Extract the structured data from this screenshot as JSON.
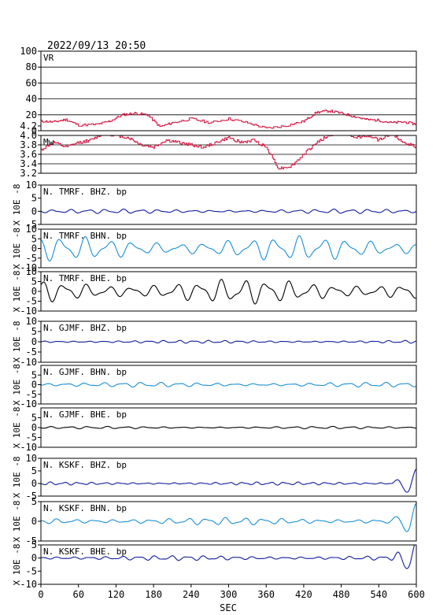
{
  "header": {
    "datetime": "2022/09/13 20:50"
  },
  "colors": {
    "red": "#d0103c",
    "navy": "#101c9c",
    "cyan": "#1a8fd4",
    "black": "#000000"
  },
  "chart_data": {
    "type": "line",
    "xlabel": "SEC",
    "xlim": [
      0,
      600
    ],
    "xticks": [
      "0",
      "60",
      "120",
      "180",
      "240",
      "300",
      "360",
      "420",
      "480",
      "540",
      "600"
    ],
    "panels": [
      {
        "label": "VR",
        "ylabel": "",
        "ylim": [
          0,
          100
        ],
        "yticks": [
          "0",
          "20",
          "40",
          "60",
          "80",
          "100"
        ],
        "ytick_values": [
          0,
          20,
          40,
          60,
          80,
          100
        ],
        "grid": true,
        "kind": "step",
        "color": "#d0103c",
        "x": [
          0,
          20,
          40,
          60,
          90,
          110,
          130,
          150,
          170,
          190,
          210,
          240,
          270,
          300,
          330,
          360,
          390,
          420,
          440,
          460,
          480,
          500,
          520,
          540,
          560,
          580,
          600
        ],
        "y": [
          12,
          11,
          14,
          7,
          8,
          12,
          20,
          22,
          20,
          5,
          10,
          15,
          10,
          15,
          10,
          3,
          6,
          12,
          23,
          25,
          22,
          18,
          14,
          13,
          10,
          11,
          8
        ]
      },
      {
        "label": "Mw",
        "ylabel": "",
        "ylim": [
          3.2,
          4.0
        ],
        "yticks": [
          "3.2",
          "3.4",
          "3.6",
          "3.8",
          "4.0",
          "4.2"
        ],
        "ytick_values": [
          3.2,
          3.4,
          3.6,
          3.8,
          4.0,
          4.2
        ],
        "grid": true,
        "kind": "step",
        "color": "#d0103c",
        "x": [
          0,
          20,
          40,
          60,
          80,
          100,
          120,
          140,
          160,
          180,
          200,
          220,
          240,
          260,
          280,
          300,
          320,
          340,
          360,
          380,
          400,
          420,
          440,
          460,
          480,
          500,
          520,
          540,
          560,
          580,
          600
        ],
        "y": [
          3.7,
          3.85,
          3.75,
          3.85,
          3.9,
          4.05,
          4.0,
          3.95,
          3.8,
          3.75,
          3.9,
          3.85,
          3.8,
          3.75,
          3.85,
          3.95,
          3.85,
          3.9,
          3.75,
          3.3,
          3.35,
          3.6,
          3.85,
          4.0,
          4.05,
          3.95,
          4.0,
          3.9,
          4.05,
          3.85,
          3.75
        ]
      },
      {
        "label": "N. TMRF. BHZ. bp",
        "ylabel": "X 10E -8",
        "ylim": [
          -5,
          10
        ],
        "yticks": [
          "-5",
          "0",
          "5",
          "10"
        ],
        "ytick_values": [
          -5,
          0,
          5,
          10
        ],
        "grid": false,
        "kind": "wave",
        "color": "#101c9c",
        "amp": 0.8,
        "seed": 1,
        "period": 28,
        "end_spike": 0
      },
      {
        "label": "N. TMRF. BHN. bp",
        "ylabel": "X 10E -8",
        "ylim": [
          -10,
          10
        ],
        "yticks": [
          "-10",
          "-5",
          "0",
          "5",
          "10"
        ],
        "ytick_values": [
          -10,
          -5,
          0,
          5,
          10
        ],
        "grid": false,
        "kind": "wave",
        "color": "#1a8fd4",
        "amp": 6.0,
        "seed": 2,
        "period": 38,
        "end_spike": 0
      },
      {
        "label": "N. TMRF. BHE. bp",
        "ylabel": "X 10E -8",
        "ylim": [
          -10,
          10
        ],
        "yticks": [
          "-10",
          "-5",
          "0",
          "5",
          "10"
        ],
        "ytick_values": [
          -10,
          -5,
          0,
          5,
          10
        ],
        "grid": false,
        "kind": "wave",
        "color": "#000000",
        "amp": 6.0,
        "seed": 3,
        "period": 36,
        "end_spike": 0
      },
      {
        "label": "N. GJMF. BHZ. bp",
        "ylabel": "X 10E -8",
        "ylim": [
          -10,
          10
        ],
        "yticks": [
          "-10",
          "-5",
          "0",
          "5",
          "10"
        ],
        "ytick_values": [
          -10,
          -5,
          0,
          5,
          10
        ],
        "grid": false,
        "kind": "wave",
        "color": "#101c9c",
        "amp": 0.7,
        "seed": 4,
        "period": 24,
        "end_spike": 0
      },
      {
        "label": "N. GJMF. BHN. bp",
        "ylabel": "X 10E -8",
        "ylim": [
          -10,
          10
        ],
        "yticks": [
          "-10",
          "-5",
          "0",
          "5"
        ],
        "ytick_values": [
          -10,
          -5,
          0,
          5
        ],
        "grid": false,
        "kind": "wave",
        "color": "#1a8fd4",
        "amp": 1.2,
        "seed": 5,
        "period": 30,
        "end_spike": 0
      },
      {
        "label": "N. GJMF. BHE. bp",
        "ylabel": "X 10E -8",
        "ylim": [
          -10,
          10
        ],
        "yticks": [
          "-10",
          "-5",
          "0",
          "5"
        ],
        "ytick_values": [
          -10,
          -5,
          0,
          5
        ],
        "grid": false,
        "kind": "wave",
        "color": "#000000",
        "amp": 0.6,
        "seed": 6,
        "period": 30,
        "end_spike": 0
      },
      {
        "label": "N. KSKF. BHZ. bp",
        "ylabel": "X 10E -8",
        "ylim": [
          -5,
          10
        ],
        "yticks": [
          "-5",
          "0",
          "5",
          "10"
        ],
        "ytick_values": [
          -5,
          0,
          5,
          10
        ],
        "grid": false,
        "kind": "wave",
        "color": "#101c9c",
        "amp": 0.6,
        "seed": 7,
        "period": 22,
        "end_spike": 6
      },
      {
        "label": "N. KSKF. BHN. bp",
        "ylabel": "X 10E -8",
        "ylim": [
          -5,
          5
        ],
        "yticks": [
          "-5",
          "0",
          "5"
        ],
        "ytick_values": [
          -5,
          0,
          5
        ],
        "grid": false,
        "kind": "wave",
        "color": "#1a8fd4",
        "amp": 0.9,
        "seed": 8,
        "period": 30,
        "end_spike": 4
      },
      {
        "label": "N. KSKF. BHE. bp",
        "ylabel": "X 10E -8",
        "ylim": [
          -10,
          5
        ],
        "yticks": [
          "-10",
          "-5",
          "0",
          "5"
        ],
        "ytick_values": [
          -10,
          -5,
          0,
          5
        ],
        "grid": false,
        "kind": "wave",
        "color": "#101c9c",
        "amp": 0.9,
        "seed": 9,
        "period": 26,
        "end_spike": 6
      }
    ]
  }
}
